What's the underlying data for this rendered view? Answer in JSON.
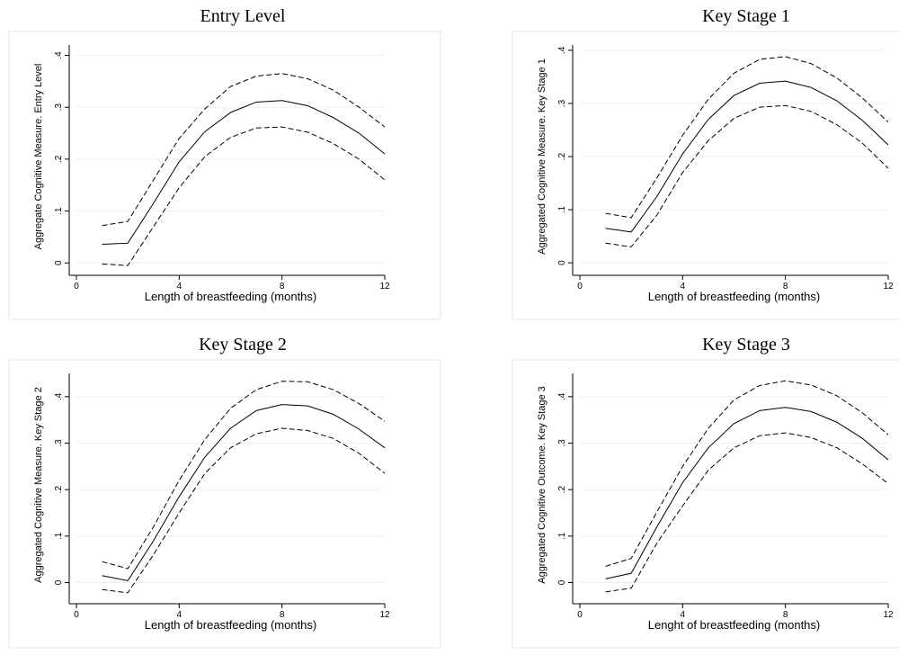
{
  "chart_data": [
    {
      "type": "line",
      "title": "Entry Level",
      "xlabel": "Length of breastfeeding (months)",
      "ylabel": "Aggregate Cognitive Measure. Entry Level",
      "x": [
        1,
        2,
        3,
        4,
        5,
        6,
        7,
        8,
        9,
        10,
        11,
        12
      ],
      "xlim": [
        0,
        12
      ],
      "xticks": [
        0,
        4,
        8,
        12
      ],
      "ylim": [
        -0.01,
        0.42
      ],
      "yticks": [
        0,
        {
          "value": 0.1,
          "label": ".1"
        },
        {
          "value": 0.2,
          "label": ".2"
        },
        {
          "value": 0.3,
          "label": ".3"
        },
        {
          "value": 0.4,
          "label": ".4"
        }
      ],
      "grid": true,
      "series": [
        {
          "color": "#000000",
          "dash": false,
          "values": [
            0.036,
            0.038,
            0.115,
            0.195,
            0.253,
            0.29,
            0.31,
            0.313,
            0.303,
            0.28,
            0.25,
            0.21
          ]
        },
        {
          "color": "#000000",
          "dash": true,
          "values": [
            0.072,
            0.08,
            0.16,
            0.24,
            0.297,
            0.34,
            0.36,
            0.365,
            0.355,
            0.333,
            0.3,
            0.262
          ]
        },
        {
          "color": "#000000",
          "dash": true,
          "values": [
            -0.002,
            -0.005,
            0.07,
            0.145,
            0.205,
            0.242,
            0.26,
            0.262,
            0.252,
            0.23,
            0.2,
            0.16
          ]
        }
      ]
    },
    {
      "type": "line",
      "title": "Key Stage 1",
      "xlabel": "Length of breastfeeding (months)",
      "ylabel": "Aggregated Cognitive Measure. Key Stage 1",
      "x": [
        1,
        2,
        3,
        4,
        5,
        6,
        7,
        8,
        9,
        10,
        11,
        12
      ],
      "xlim": [
        0,
        12
      ],
      "xticks": [
        0,
        4,
        8,
        12
      ],
      "ylim": [
        -0.01,
        0.41
      ],
      "yticks": [
        0,
        {
          "value": 0.1,
          "label": ".1"
        },
        {
          "value": 0.2,
          "label": ".2"
        },
        {
          "value": 0.3,
          "label": ".3"
        },
        {
          "value": 0.4,
          "label": ".4"
        }
      ],
      "grid": true,
      "series": [
        {
          "color": "#000000",
          "dash": false,
          "values": [
            0.065,
            0.058,
            0.125,
            0.205,
            0.27,
            0.315,
            0.338,
            0.342,
            0.33,
            0.305,
            0.268,
            0.222
          ]
        },
        {
          "color": "#000000",
          "dash": true,
          "values": [
            0.093,
            0.085,
            0.16,
            0.24,
            0.308,
            0.357,
            0.383,
            0.388,
            0.375,
            0.348,
            0.31,
            0.265
          ]
        },
        {
          "color": "#000000",
          "dash": true,
          "values": [
            0.037,
            0.03,
            0.09,
            0.17,
            0.23,
            0.272,
            0.293,
            0.296,
            0.285,
            0.26,
            0.225,
            0.178
          ]
        }
      ]
    },
    {
      "type": "line",
      "title": "Key Stage 2",
      "xlabel": "Length of breastfeeding (months)",
      "ylabel": "Aggregated Cognitive Measure. Key Stage 2",
      "x": [
        1,
        2,
        3,
        4,
        5,
        6,
        7,
        8,
        9,
        10,
        11,
        12
      ],
      "xlim": [
        0,
        12
      ],
      "xticks": [
        0,
        4,
        8,
        12
      ],
      "ylim": [
        -0.03,
        0.45
      ],
      "yticks": [
        0,
        {
          "value": 0.1,
          "label": ".1"
        },
        {
          "value": 0.2,
          "label": ".2"
        },
        {
          "value": 0.3,
          "label": ".3"
        },
        {
          "value": 0.4,
          "label": ".4"
        }
      ],
      "grid": true,
      "series": [
        {
          "color": "#000000",
          "dash": false,
          "values": [
            0.015,
            0.004,
            0.09,
            0.185,
            0.27,
            0.332,
            0.37,
            0.383,
            0.38,
            0.362,
            0.33,
            0.29
          ]
        },
        {
          "color": "#000000",
          "dash": true,
          "values": [
            0.045,
            0.03,
            0.12,
            0.22,
            0.308,
            0.375,
            0.415,
            0.433,
            0.432,
            0.415,
            0.385,
            0.347
          ]
        },
        {
          "color": "#000000",
          "dash": true,
          "values": [
            -0.015,
            -0.022,
            0.06,
            0.15,
            0.235,
            0.29,
            0.32,
            0.332,
            0.327,
            0.31,
            0.278,
            0.235
          ]
        }
      ]
    },
    {
      "type": "line",
      "title": "Key Stage 3",
      "xlabel": "Lenght of breastfeeding (months)",
      "ylabel": "Aggregated Cognitive Outcome. Key Stage 3",
      "x": [
        1,
        2,
        3,
        4,
        5,
        6,
        7,
        8,
        9,
        10,
        11,
        12
      ],
      "xlim": [
        0,
        12
      ],
      "xticks": [
        0,
        4,
        8,
        12
      ],
      "ylim": [
        -0.03,
        0.45
      ],
      "yticks": [
        0,
        {
          "value": 0.1,
          "label": ".1"
        },
        {
          "value": 0.2,
          "label": ".2"
        },
        {
          "value": 0.3,
          "label": ".3"
        },
        {
          "value": 0.4,
          "label": ".4"
        }
      ],
      "grid": true,
      "series": [
        {
          "color": "#000000",
          "dash": false,
          "values": [
            0.008,
            0.02,
            0.12,
            0.215,
            0.29,
            0.342,
            0.37,
            0.377,
            0.368,
            0.345,
            0.31,
            0.264
          ]
        },
        {
          "color": "#000000",
          "dash": true,
          "values": [
            0.035,
            0.052,
            0.152,
            0.25,
            0.332,
            0.393,
            0.424,
            0.434,
            0.425,
            0.402,
            0.365,
            0.318
          ]
        },
        {
          "color": "#000000",
          "dash": true,
          "values": [
            -0.02,
            -0.012,
            0.085,
            0.165,
            0.242,
            0.29,
            0.316,
            0.322,
            0.312,
            0.29,
            0.255,
            0.213
          ]
        }
      ]
    }
  ]
}
